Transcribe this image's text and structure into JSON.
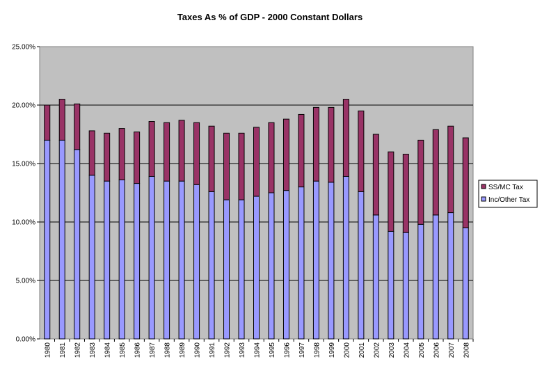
{
  "chart_data": {
    "type": "bar",
    "stacked": true,
    "title": "Taxes As % of GDP - 2000 Constant Dollars",
    "xlabel": "",
    "ylabel": "",
    "ylim": [
      0,
      25
    ],
    "yticks": [
      "0.00%",
      "5.00%",
      "10.00%",
      "15.00%",
      "20.00%",
      "25.00%"
    ],
    "grid": true,
    "legend_position": "right",
    "categories": [
      "1980",
      "1981",
      "1982",
      "1983",
      "1984",
      "1985",
      "1986",
      "1987",
      "1988",
      "1989",
      "1990",
      "1991",
      "1992",
      "1993",
      "1994",
      "1995",
      "1996",
      "1997",
      "1998",
      "1999",
      "2000",
      "2001",
      "2002",
      "2003",
      "2004",
      "2005",
      "2006",
      "2007",
      "2008"
    ],
    "series": [
      {
        "name": "Inc/Other Tax",
        "color": "#9999ff",
        "values": [
          17.0,
          17.0,
          16.2,
          14.0,
          13.5,
          13.6,
          13.3,
          13.9,
          13.5,
          13.5,
          13.2,
          12.6,
          11.9,
          11.9,
          12.2,
          12.5,
          12.7,
          13.0,
          13.5,
          13.4,
          13.9,
          12.6,
          10.6,
          9.2,
          9.1,
          9.8,
          10.6,
          10.8,
          9.5
        ]
      },
      {
        "name": "SS/MC Tax",
        "color": "#993366",
        "values": [
          3.0,
          3.5,
          3.9,
          3.8,
          4.1,
          4.4,
          4.4,
          4.7,
          5.0,
          5.2,
          5.3,
          5.6,
          5.7,
          5.7,
          5.9,
          6.0,
          6.1,
          6.2,
          6.3,
          6.4,
          6.6,
          6.9,
          6.9,
          6.8,
          6.7,
          7.2,
          7.3,
          7.4,
          7.7
        ]
      }
    ]
  }
}
